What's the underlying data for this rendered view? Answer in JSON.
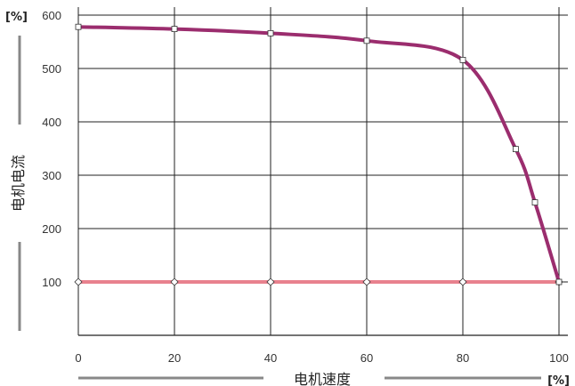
{
  "chart_data": {
    "type": "line",
    "xlabel": "电机速度",
    "ylabel": "电机电流",
    "x_unit": "[%]",
    "y_unit": "[%]",
    "xlim": [
      0,
      100
    ],
    "ylim": [
      0,
      600
    ],
    "x_ticks": [
      "0",
      "20",
      "40",
      "60",
      "80",
      "100"
    ],
    "y_ticks": [
      "100",
      "200",
      "300",
      "400",
      "500",
      "600"
    ],
    "grid": true,
    "series": [
      {
        "color": "#9b2d6e",
        "marker": "square",
        "x": [
          0,
          20,
          40,
          60,
          80,
          91,
          95,
          100
        ],
        "y": [
          578,
          574,
          566,
          552,
          516,
          349,
          249,
          100
        ]
      },
      {
        "color": "#e8818e",
        "marker": "diamond",
        "x": [
          0,
          20,
          40,
          60,
          80,
          100
        ],
        "y": [
          100,
          100,
          100,
          100,
          100,
          100
        ]
      }
    ],
    "colors": {
      "grid": "#222222",
      "axis_bar": "#888888",
      "text": "#333333"
    }
  }
}
